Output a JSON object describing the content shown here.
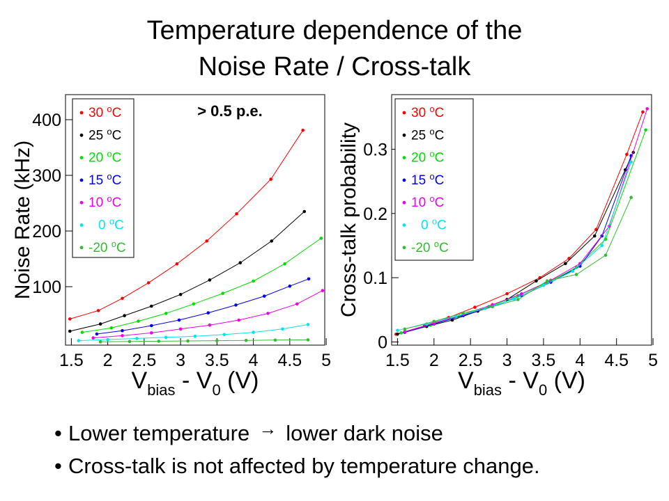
{
  "title": {
    "line1": "Temperature dependence of the",
    "line2": "Noise Rate / Cross-talk"
  },
  "bullets": [
    "Lower temperature",
    "lower dark noise",
    "Cross-talk is not affected by temperature change."
  ],
  "colors": {
    "30": "#ff0000",
    "25": "#000000",
    "20": "#00dd00",
    "15": "#0000ee",
    "10": "#ee00ee",
    "0": "#00e5ee",
    "-20": "#33bb33"
  },
  "chart_data": [
    {
      "type": "line",
      "title": "",
      "annotation": "> 0.5 p.e.",
      "xlabel": "V_bias - V_0 (V)",
      "ylabel": "Noise Rate (kHz)",
      "xlim": [
        1.42,
        4.98
      ],
      "ylim": [
        -5,
        445
      ],
      "x_ticks": [
        "1.5",
        "2",
        "2.5",
        "3",
        "3.5",
        "4",
        "4.5",
        "5"
      ],
      "y_ticks": [
        "100",
        "200",
        "300",
        "400"
      ],
      "legend_position": "top-left",
      "series": [
        {
          "name": "30 oC",
          "color_key": "30",
          "x": [
            1.48,
            1.87,
            2.2,
            2.56,
            2.95,
            3.36,
            3.77,
            4.24,
            4.68
          ],
          "y": [
            42,
            57,
            79,
            107,
            141,
            182,
            231,
            293,
            381
          ]
        },
        {
          "name": "25 oC",
          "color_key": "25",
          "x": [
            1.48,
            1.9,
            2.23,
            2.6,
            3.0,
            3.4,
            3.82,
            4.25,
            4.7
          ],
          "y": [
            20,
            33,
            48,
            65,
            86,
            112,
            143,
            182,
            235
          ]
        },
        {
          "name": "20 oC",
          "color_key": "20",
          "x": [
            1.65,
            2.05,
            2.42,
            2.8,
            3.18,
            3.58,
            4.0,
            4.43,
            4.93
          ],
          "y": [
            18,
            26,
            38,
            52,
            69,
            88,
            110,
            141,
            187
          ]
        },
        {
          "name": "15 oC",
          "color_key": "15",
          "x": [
            1.85,
            2.2,
            2.6,
            2.98,
            3.38,
            3.76,
            4.15,
            4.5,
            4.76
          ],
          "y": [
            15,
            21,
            30,
            40,
            53,
            67,
            83,
            101,
            114
          ]
        },
        {
          "name": "10 oC",
          "color_key": "10",
          "x": [
            1.8,
            2.2,
            2.6,
            3.0,
            3.4,
            3.8,
            4.2,
            4.6,
            4.95
          ],
          "y": [
            8,
            12,
            17,
            24,
            31,
            40,
            52,
            69,
            93
          ]
        },
        {
          "name": "0 oC",
          "color_key": "0",
          "x": [
            1.6,
            2.0,
            2.4,
            2.8,
            3.2,
            3.6,
            4.0,
            4.4,
            4.75
          ],
          "y": [
            3,
            5,
            7,
            9,
            11,
            14,
            18,
            24,
            32
          ]
        },
        {
          "name": "-20 oC",
          "color_key": "-20",
          "x": [
            1.9,
            2.3,
            2.7,
            3.1,
            3.5,
            3.9,
            4.3,
            4.75
          ],
          "y": [
            1,
            1.5,
            2,
            2.5,
            3,
            3.5,
            4,
            4.5
          ]
        }
      ]
    },
    {
      "type": "line",
      "title": "",
      "xlabel": "V_bias - V_0 (V)",
      "ylabel": "Cross-talk probability",
      "xlim": [
        1.42,
        4.98
      ],
      "ylim": [
        -0.005,
        0.385
      ],
      "x_ticks": [
        "1.5",
        "2",
        "2.5",
        "3",
        "3.5",
        "4",
        "4.5",
        "5"
      ],
      "y_ticks": [
        "0",
        "0.1",
        "0.2",
        "0.3"
      ],
      "legend_position": "top-left",
      "series": [
        {
          "name": "30 oC",
          "color_key": "30",
          "x": [
            1.48,
            1.87,
            2.2,
            2.56,
            3.0,
            3.45,
            3.85,
            4.22,
            4.64,
            4.86
          ],
          "y": [
            0.012,
            0.025,
            0.038,
            0.054,
            0.075,
            0.1,
            0.13,
            0.175,
            0.292,
            0.358
          ]
        },
        {
          "name": "25 oC",
          "color_key": "25",
          "x": [
            1.5,
            1.9,
            2.25,
            2.6,
            3.0,
            3.4,
            3.8,
            4.2,
            4.62,
            4.73
          ],
          "y": [
            0.012,
            0.024,
            0.034,
            0.048,
            0.066,
            0.095,
            0.122,
            0.165,
            0.268,
            0.295
          ]
        },
        {
          "name": "20 oC",
          "color_key": "20",
          "x": [
            1.55,
            1.95,
            2.35,
            2.75,
            3.15,
            3.55,
            3.95,
            4.35,
            4.9
          ],
          "y": [
            0.014,
            0.026,
            0.04,
            0.055,
            0.072,
            0.092,
            0.116,
            0.16,
            0.33
          ]
        },
        {
          "name": "15 oC",
          "color_key": "15",
          "x": [
            1.6,
            2.0,
            2.4,
            2.8,
            3.2,
            3.6,
            4.0,
            4.3,
            4.7
          ],
          "y": [
            0.015,
            0.028,
            0.041,
            0.055,
            0.072,
            0.093,
            0.118,
            0.165,
            0.29
          ]
        },
        {
          "name": "10 oC",
          "color_key": "10",
          "x": [
            1.6,
            2.0,
            2.4,
            2.8,
            3.2,
            3.6,
            4.0,
            4.4,
            4.92
          ],
          "y": [
            0.016,
            0.029,
            0.043,
            0.058,
            0.075,
            0.096,
            0.122,
            0.18,
            0.363
          ]
        },
        {
          "name": "0 oC",
          "color_key": "0",
          "x": [
            1.5,
            1.9,
            2.3,
            2.7,
            3.1,
            3.5,
            3.9,
            4.3,
            4.7
          ],
          "y": [
            0.018,
            0.028,
            0.04,
            0.052,
            0.067,
            0.088,
            0.11,
            0.15,
            0.28
          ]
        },
        {
          "name": "-20 oC",
          "color_key": "-20",
          "x": [
            1.6,
            2.0,
            2.4,
            2.8,
            3.15,
            3.55,
            3.95,
            4.35,
            4.7
          ],
          "y": [
            0.02,
            0.032,
            0.045,
            0.055,
            0.066,
            0.095,
            0.105,
            0.135,
            0.225
          ]
        }
      ]
    }
  ]
}
